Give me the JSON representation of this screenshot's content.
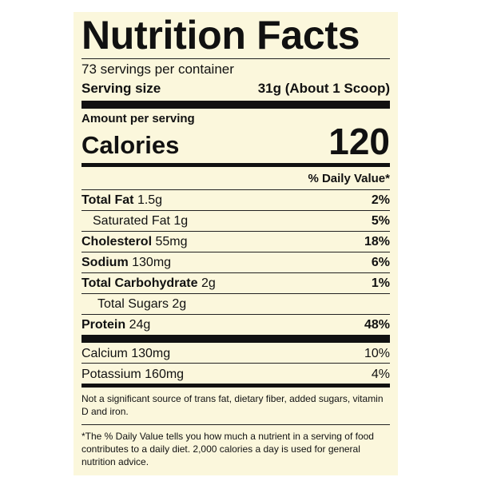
{
  "header": {
    "title": "Nutrition Facts",
    "servings": "73 servings per container",
    "serving_size_label": "Serving size",
    "serving_size_value": "31g (About 1 Scoop)"
  },
  "calories": {
    "amount_label": "Amount per serving",
    "label": "Calories",
    "value": 120
  },
  "dv_header": "% Daily Value*",
  "nutrients": [
    {
      "name": "Total Fat",
      "amount": "1.5g",
      "dv": "2%"
    },
    {
      "name": "Saturated Fat",
      "amount": "1g",
      "dv": "5%"
    },
    {
      "name": "Cholesterol",
      "amount": "55mg",
      "dv": "18%"
    },
    {
      "name": "Sodium",
      "amount": "130mg",
      "dv": "6%"
    },
    {
      "name": "Total Carbohydrate",
      "amount": "2g",
      "dv": "1%"
    },
    {
      "name": "Total Sugars",
      "amount": "2g"
    },
    {
      "name": "Protein",
      "amount": "24g",
      "dv": "48%"
    }
  ],
  "minerals": [
    {
      "name": "Calcium 130mg",
      "dv": "10%"
    },
    {
      "name": "Potassium 160mg",
      "dv": "4%"
    }
  ],
  "footnotes": [
    "Not a significant source of trans fat, dietary fiber, added sugars, vitamin D and iron.",
    "*The % Daily Value tells you how much a nutrient in a serving of food contributes to a daily diet. 2,000 calories a day is used for general nutrition advice."
  ]
}
